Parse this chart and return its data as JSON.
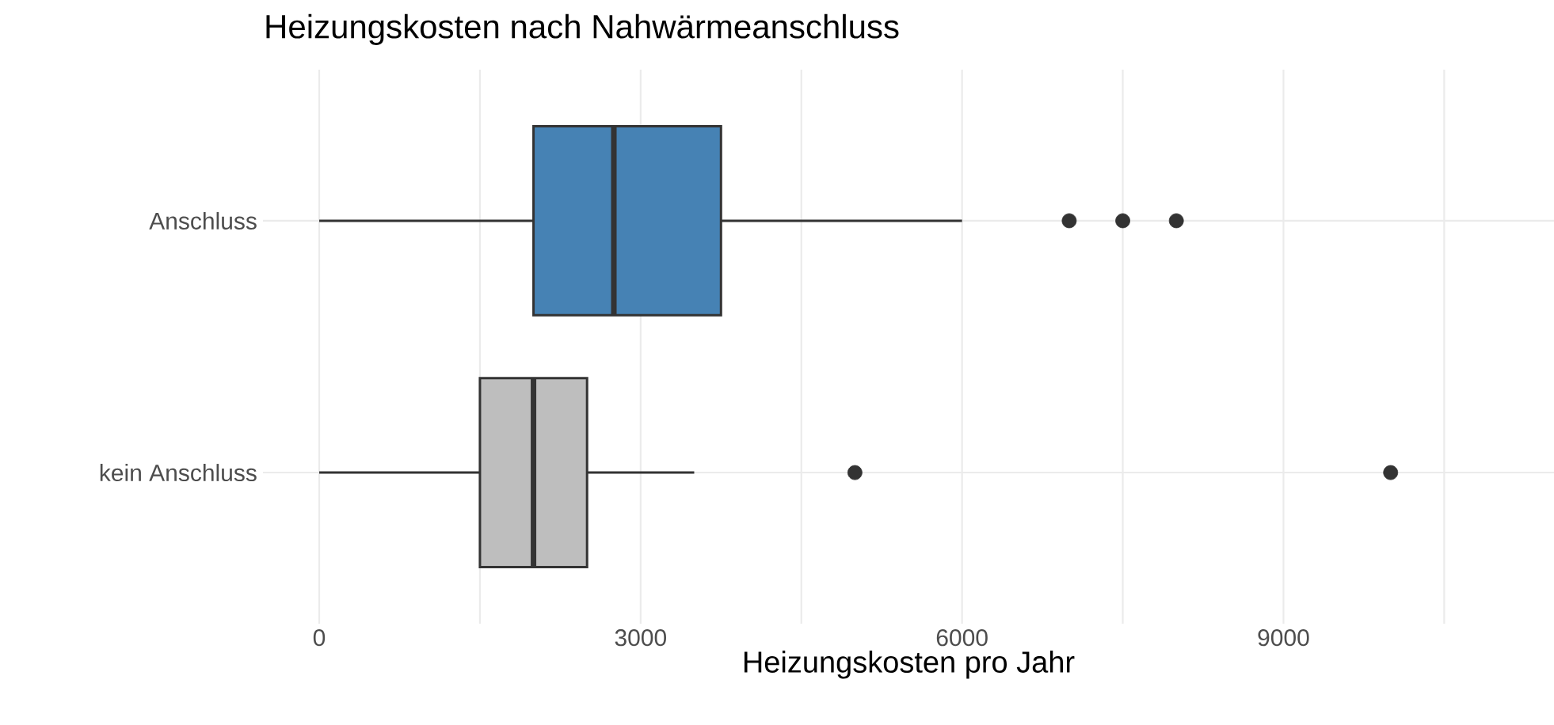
{
  "chart_data": {
    "type": "box",
    "orientation": "horizontal",
    "title": "Heizungskosten nach Nahwärmeanschluss",
    "xlabel": "Heizungskosten pro Jahr",
    "categories": [
      "Anschluss",
      "kein Anschluss"
    ],
    "boxes": [
      {
        "low": 0,
        "q1": 2000,
        "median": 2750,
        "q3": 3750,
        "high": 6000,
        "outliers": [
          7000,
          7500,
          8000
        ]
      },
      {
        "low": 0,
        "q1": 1500,
        "median": 2000,
        "q3": 2500,
        "high": 3500,
        "outliers": [
          5000,
          10000
        ]
      }
    ],
    "colors": [
      "#4682b4",
      "#bebebe"
    ],
    "xlim": [
      -525,
      11525
    ],
    "xticks": [
      0,
      {
        "value": 1500,
        "label": null
      },
      3000,
      {
        "value": 4500,
        "label": null
      },
      6000,
      {
        "value": 7500,
        "label": null
      },
      9000,
      {
        "value": 10500,
        "label": null
      }
    ],
    "grid": true
  }
}
